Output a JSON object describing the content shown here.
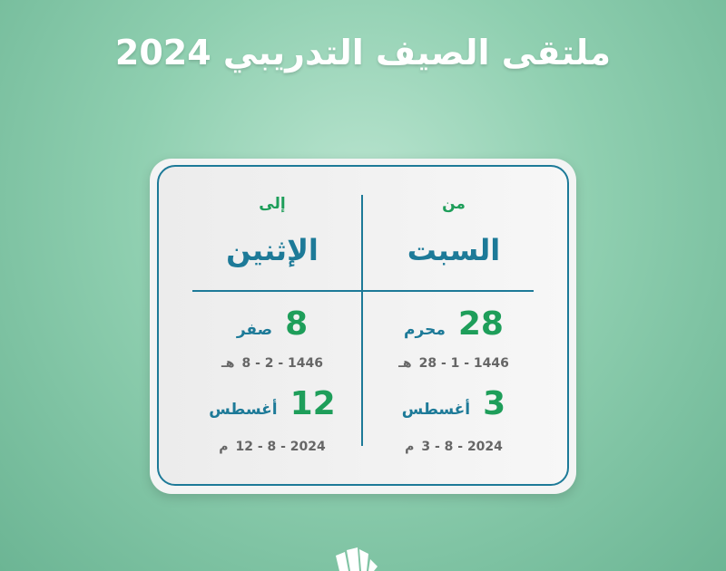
{
  "title": "ملتقى الصيف التدريبي 2024",
  "from": {
    "label": "من",
    "day": "السبت",
    "hijri_day": "28",
    "hijri_month": "محرم",
    "hijri_date": "28 - 1 - 1446",
    "hijri_suffix": "هـ",
    "greg_day": "3",
    "greg_month": "أغسطس",
    "greg_date": "3 - 8 - 2024",
    "greg_suffix": "م"
  },
  "to": {
    "label": "إلى",
    "day": "الإثنين",
    "hijri_day": "8",
    "hijri_month": "صفر",
    "hijri_date": "8 - 2 - 1446",
    "hijri_suffix": "هـ",
    "greg_day": "12",
    "greg_month": "أغسطس",
    "greg_date": "12 - 8 - 2024",
    "greg_suffix": "م"
  },
  "colors": {
    "green": "#1e9e5a",
    "teal": "#1d7a98"
  }
}
